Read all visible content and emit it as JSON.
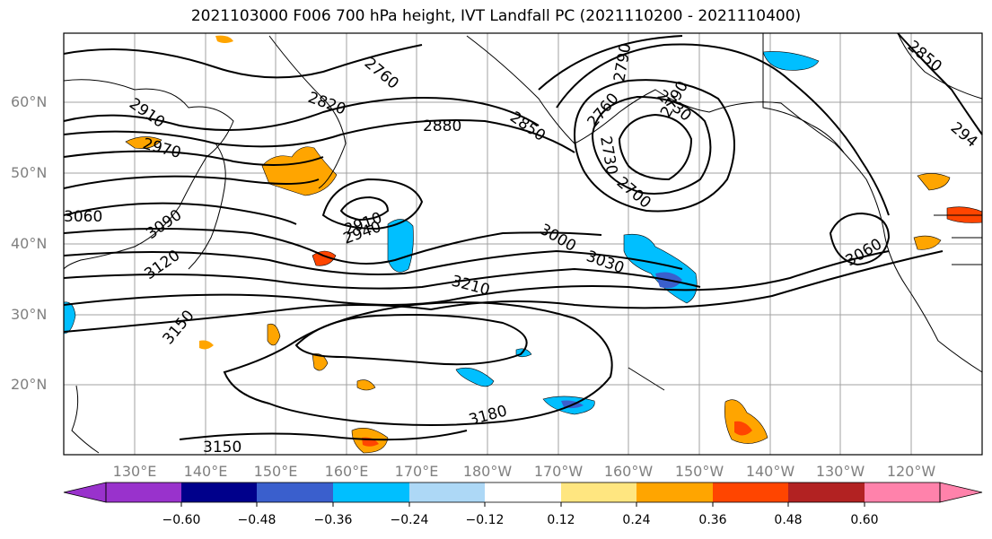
{
  "title": "2021103000 F006 700 hPa height, IVT Landfall PC (2021110200 - 2021110400)",
  "latitude_labels": [
    "60°N",
    "50°N",
    "40°N",
    "30°N",
    "20°N"
  ],
  "longitude_labels": [
    "130°E",
    "140°E",
    "150°E",
    "160°E",
    "170°E",
    "180°W",
    "170°W",
    "160°W",
    "150°W",
    "140°W",
    "130°W",
    "120°W"
  ],
  "contour_labels": [
    "2760",
    "2790",
    "2820",
    "2850",
    "2880",
    "2910",
    "2970",
    "3060",
    "3090",
    "3120",
    "3150",
    "2910",
    "2940",
    "3000",
    "3030",
    "3210",
    "3180",
    "3150",
    "2760",
    "2730",
    "2790",
    "2730",
    "2700",
    "3060",
    "2850",
    "294"
  ],
  "colorbar": {
    "ticks": [
      "−0.60",
      "−0.48",
      "−0.36",
      "−0.24",
      "−0.12",
      "0.12",
      "0.24",
      "0.36",
      "0.48",
      "0.60"
    ],
    "colors": [
      "#9932cc",
      "#00008b",
      "#3a5fcd",
      "#00bfff",
      "#add8f6",
      "#ffffff",
      "#ffe680",
      "#ffa500",
      "#ff4500",
      "#b22222",
      "#ff82ab"
    ]
  }
}
